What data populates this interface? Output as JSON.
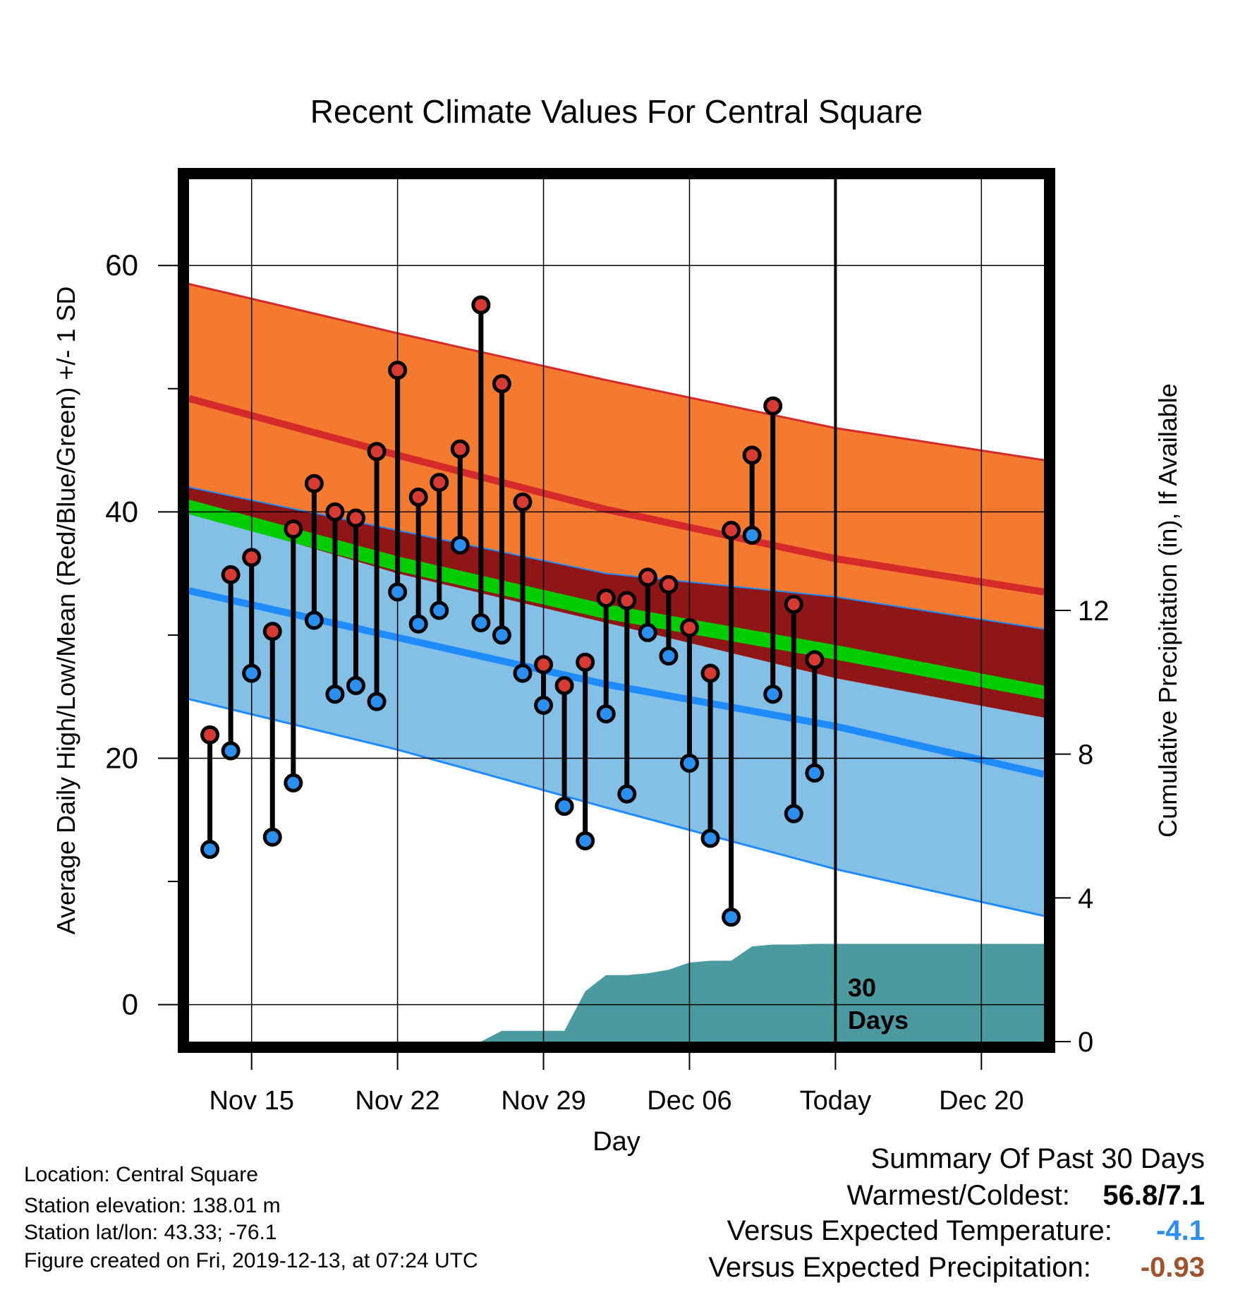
{
  "chart_data": {
    "type": "line",
    "title": "Recent Climate Values For Central Square",
    "xlabel": "Day",
    "ylabel": "Average Daily High/Low/Mean (Red/Blue/Green) +/- 1 SD",
    "y2label": "Cumulative Precipitation (in), If Available",
    "x_start_date": "2019-11-12",
    "xlim": [
      0,
      41
    ],
    "ylim": [
      -3,
      67
    ],
    "y2lim": [
      0,
      24
    ],
    "yticks": [
      0,
      20,
      40,
      60
    ],
    "y2ticks": [
      0,
      4,
      8,
      12
    ],
    "x_ticks": [
      {
        "x": 3,
        "label": "Nov 15"
      },
      {
        "x": 10,
        "label": "Nov 22"
      },
      {
        "x": 17,
        "label": "Nov 29"
      },
      {
        "x": 24,
        "label": "Dec 06"
      },
      {
        "x": 31,
        "label": "Today"
      },
      {
        "x": 38,
        "label": "Dec 20"
      }
    ],
    "today_x": 31,
    "today_label": "30 Days",
    "grid": true,
    "normal_high": {
      "x": [
        0,
        10,
        20,
        31,
        41
      ],
      "mean": [
        49.2,
        44.6,
        40.2,
        36.2,
        33.5
      ],
      "upper": [
        58.5,
        54.5,
        50.7,
        46.8,
        44.2
      ],
      "lower": [
        42.0,
        38.5,
        35.0,
        33.1,
        30.5
      ]
    },
    "normal_low": {
      "x": [
        0,
        10,
        20,
        31,
        41
      ],
      "mean": [
        33.6,
        29.8,
        26.0,
        22.6,
        18.7
      ],
      "upper": [
        40.0,
        35.0,
        31.0,
        26.5,
        23.3
      ],
      "lower": [
        24.8,
        20.7,
        16.0,
        11.0,
        7.2
      ]
    },
    "normal_mean": {
      "x": [
        0,
        10,
        20,
        31,
        41
      ],
      "lower": [
        39.8,
        35.2,
        31.3,
        28.0,
        24.8
      ],
      "upper": [
        41.0,
        36.4,
        32.5,
        29.2,
        25.9
      ]
    },
    "daily": {
      "x": [
        1,
        2,
        3,
        4,
        5,
        6,
        7,
        8,
        9,
        10,
        11,
        12,
        13,
        14,
        15,
        16,
        17,
        18,
        19,
        20,
        21,
        22,
        23,
        24,
        25,
        26,
        27,
        28,
        29,
        30
      ],
      "high": [
        21.9,
        34.9,
        36.3,
        30.3,
        38.6,
        42.3,
        40.0,
        39.5,
        44.9,
        51.5,
        41.2,
        42.4,
        45.1,
        56.8,
        50.4,
        40.8,
        27.6,
        25.9,
        27.8,
        33.0,
        32.8,
        34.7,
        34.1,
        30.6,
        26.9,
        38.5,
        44.6,
        48.6,
        32.5,
        28.0
      ],
      "low": [
        12.6,
        20.6,
        26.9,
        13.6,
        18.0,
        31.2,
        25.2,
        25.9,
        24.6,
        33.5,
        30.9,
        32.0,
        37.3,
        31.0,
        30.0,
        26.9,
        24.3,
        16.1,
        13.3,
        23.6,
        17.1,
        30.2,
        28.3,
        19.6,
        13.5,
        7.1,
        38.1,
        25.2,
        15.5,
        18.8
      ]
    },
    "precip_cum": {
      "x": [
        0,
        14,
        15,
        16,
        17,
        18,
        19,
        20,
        21,
        22,
        23,
        24,
        25,
        26,
        27,
        28,
        29,
        30,
        31,
        41
      ],
      "y": [
        0,
        0,
        0.3,
        0.3,
        0.3,
        0.3,
        1.4,
        1.85,
        1.85,
        1.9,
        2.0,
        2.2,
        2.25,
        2.25,
        2.65,
        2.7,
        2.7,
        2.72,
        2.72,
        2.72
      ]
    },
    "colors": {
      "high_band": "#f47a30",
      "high_line": "#d42a2a",
      "low_band": "#84bfe6",
      "low_line": "#1e8cff",
      "overlap": "#8e1616",
      "mean_band": "#00cc00",
      "precip": "#4a9aa0",
      "high_dot": "#d63a32",
      "low_dot": "#2b8ff0"
    }
  },
  "footer": {
    "location": "Location: Central Square",
    "elevation": "Station elevation: 138.01 m",
    "latlon": "Station lat/lon: 43.33; -76.1",
    "created": "Figure created on Fri, 2019-12-13, at 07:24 UTC"
  },
  "summary": {
    "title": "Summary Of Past 30 Days",
    "warmest_label": "Warmest/Coldest:",
    "warmest_value": "56.8/7.1",
    "temp_label": "Versus Expected Temperature:",
    "temp_value": "-4.1",
    "temp_color": "#2b8ff0",
    "precip_label": "Versus Expected Precipitation:",
    "precip_value": "-0.93",
    "precip_color": "#a0522d"
  }
}
